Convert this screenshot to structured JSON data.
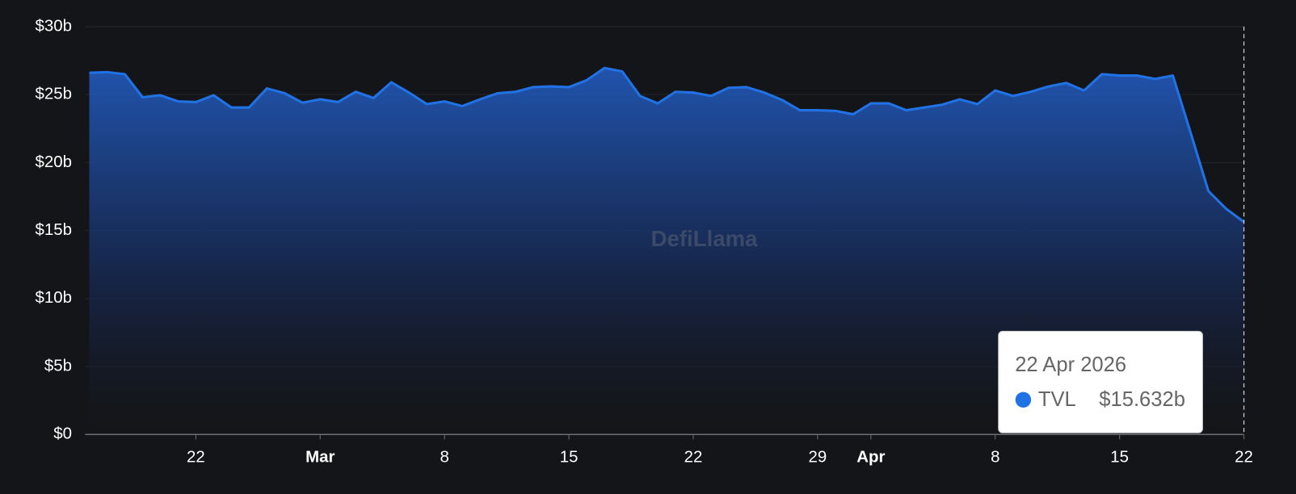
{
  "chart_data": {
    "type": "area",
    "watermark": "DefiLlama",
    "x": [
      "2026-02-16",
      "2026-02-17",
      "2026-02-18",
      "2026-02-19",
      "2026-02-20",
      "2026-02-21",
      "2026-02-22",
      "2026-02-23",
      "2026-02-24",
      "2026-02-25",
      "2026-02-26",
      "2026-02-27",
      "2026-02-28",
      "2026-03-01",
      "2026-03-02",
      "2026-03-03",
      "2026-03-04",
      "2026-03-05",
      "2026-03-06",
      "2026-03-07",
      "2026-03-08",
      "2026-03-09",
      "2026-03-10",
      "2026-03-11",
      "2026-03-12",
      "2026-03-13",
      "2026-03-14",
      "2026-03-15",
      "2026-03-16",
      "2026-03-17",
      "2026-03-18",
      "2026-03-19",
      "2026-03-20",
      "2026-03-21",
      "2026-03-22",
      "2026-03-23",
      "2026-03-24",
      "2026-03-25",
      "2026-03-26",
      "2026-03-27",
      "2026-03-28",
      "2026-03-29",
      "2026-03-30",
      "2026-03-31",
      "2026-04-01",
      "2026-04-02",
      "2026-04-03",
      "2026-04-04",
      "2026-04-05",
      "2026-04-06",
      "2026-04-07",
      "2026-04-08",
      "2026-04-09",
      "2026-04-10",
      "2026-04-11",
      "2026-04-12",
      "2026-04-13",
      "2026-04-14",
      "2026-04-15",
      "2026-04-16",
      "2026-04-17",
      "2026-04-18",
      "2026-04-19",
      "2026-04-20",
      "2026-04-21",
      "2026-04-22"
    ],
    "series": [
      {
        "name": "TVL",
        "color": "#2172e5",
        "values": [
          26.6,
          26.65,
          26.5,
          24.8,
          24.95,
          24.5,
          24.45,
          24.95,
          24.05,
          24.05,
          25.45,
          25.1,
          24.4,
          24.65,
          24.45,
          25.2,
          24.75,
          25.9,
          25.15,
          24.3,
          24.5,
          24.15,
          24.65,
          25.1,
          25.2,
          25.55,
          25.6,
          25.55,
          26.05,
          26.95,
          26.7,
          24.9,
          24.35,
          25.2,
          25.15,
          24.9,
          25.5,
          25.55,
          25.15,
          24.6,
          23.85,
          23.85,
          23.8,
          23.55,
          24.35,
          24.35,
          23.85,
          24.05,
          24.25,
          24.65,
          24.3,
          25.3,
          24.9,
          25.2,
          25.6,
          25.85,
          25.3,
          26.5,
          26.4,
          26.4,
          26.15,
          26.4,
          22.2,
          17.9,
          16.6,
          15.632
        ]
      }
    ],
    "xlim": [
      "2026-02-16",
      "2026-04-22"
    ],
    "xticks": [
      {
        "value": "2026-02-22",
        "label": "22"
      },
      {
        "value": "2026-03-01",
        "label": "Mar"
      },
      {
        "value": "2026-03-08",
        "label": "8"
      },
      {
        "value": "2026-03-15",
        "label": "15"
      },
      {
        "value": "2026-03-22",
        "label": "22"
      },
      {
        "value": "2026-03-29",
        "label": "29"
      },
      {
        "value": "2026-04-01",
        "label": "Apr"
      },
      {
        "value": "2026-04-08",
        "label": "8"
      },
      {
        "value": "2026-04-15",
        "label": "15"
      },
      {
        "value": "2026-04-22",
        "label": "22"
      }
    ],
    "ylim": [
      0,
      30
    ],
    "yticks": [
      {
        "value": 0,
        "label": "$0"
      },
      {
        "value": 5,
        "label": "$5b"
      },
      {
        "value": 10,
        "label": "$10b"
      },
      {
        "value": 15,
        "label": "$15b"
      },
      {
        "value": 20,
        "label": "$20b"
      },
      {
        "value": 25,
        "label": "$25b"
      },
      {
        "value": 30,
        "label": "$30b"
      }
    ],
    "grid": true,
    "tooltip": {
      "title": "22 Apr 2026",
      "value_label": "$15.632b"
    }
  }
}
